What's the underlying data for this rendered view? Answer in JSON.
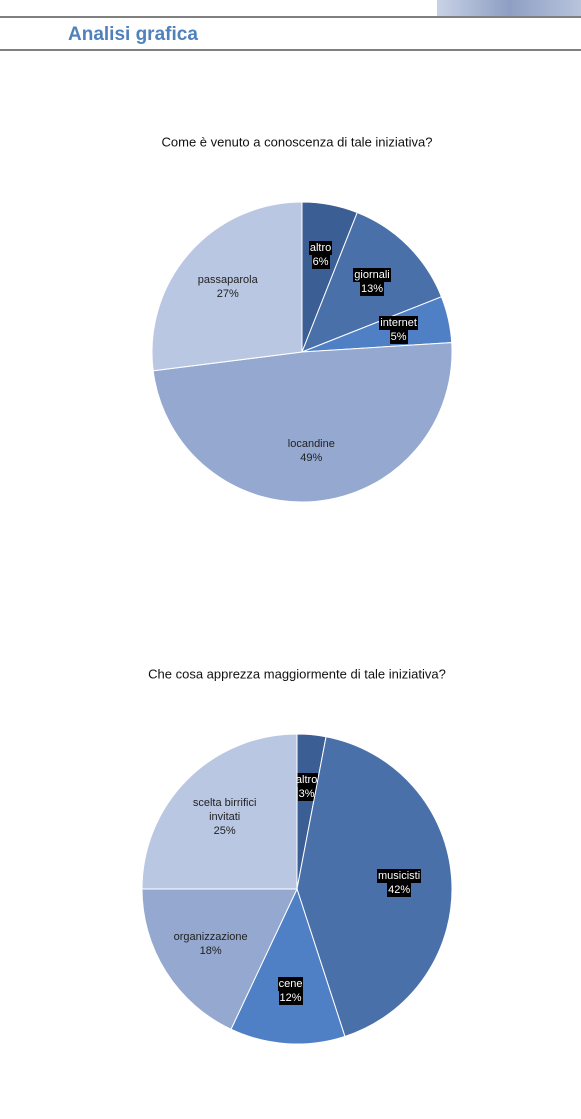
{
  "header": {
    "title": "Analisi grafica"
  },
  "chart_data": [
    {
      "type": "pie",
      "title": "Come è venuto a conoscenza di tale iniziativa?",
      "categories": [
        "altro",
        "giornali",
        "internet",
        "locandine",
        "passaparola"
      ],
      "values": [
        6,
        13,
        5,
        49,
        27
      ],
      "value_labels": [
        "6%",
        "13%",
        "5%",
        "49%",
        "27%"
      ],
      "colors": [
        "#3b5f95",
        "#4a70aa",
        "#4f80c6",
        "#94a8d0",
        "#b9c7e3"
      ]
    },
    {
      "type": "pie",
      "title": "Che cosa apprezza maggiormente di tale iniziativa?",
      "categories": [
        "altro",
        "musicisti",
        "cene",
        "organizzazione",
        "scelta birrifici invitati"
      ],
      "values": [
        3,
        42,
        12,
        18,
        25
      ],
      "value_labels": [
        "3%",
        "42%",
        "12%",
        "18%",
        "25%"
      ],
      "colors": [
        "#3b5f95",
        "#4a70aa",
        "#4f80c6",
        "#94a8d0",
        "#b9c7e3"
      ]
    }
  ]
}
